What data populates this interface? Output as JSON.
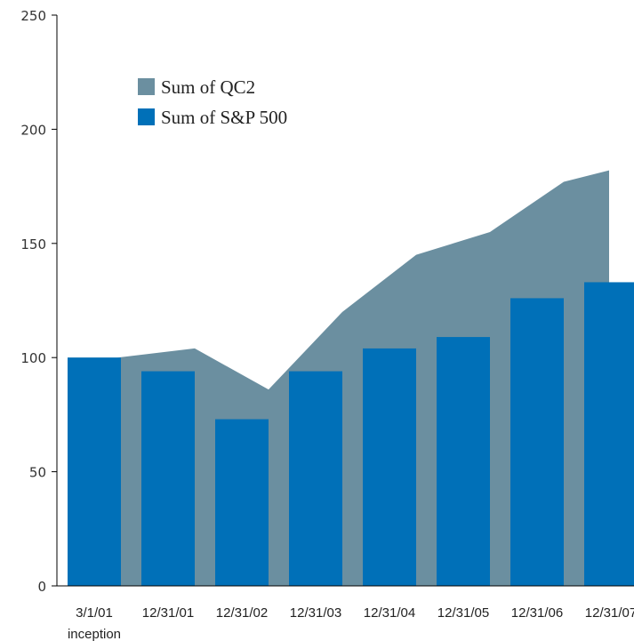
{
  "chart_data": {
    "type": "bar",
    "categories": [
      "3/1/01",
      "12/31/01",
      "12/31/02",
      "12/31/03",
      "12/31/04",
      "12/31/05",
      "12/31/06",
      "12/31/07"
    ],
    "x_sublabels": [
      "inception",
      "",
      "",
      "",
      "",
      "",
      "",
      ""
    ],
    "ylim": [
      0,
      250
    ],
    "yticks": [
      0,
      50,
      100,
      150,
      200,
      250
    ],
    "series": [
      {
        "name": "Sum of QC2",
        "type": "area",
        "color": "#6b8fa0",
        "values": [
          100,
          104,
          86,
          120,
          145,
          155,
          177,
          182
        ]
      },
      {
        "name": "Sum of S&P 500",
        "type": "bar",
        "color": "#0070b8",
        "values": [
          100,
          94,
          73,
          94,
          104,
          109,
          126,
          133
        ]
      }
    ],
    "legend": {
      "placement": "top-left"
    },
    "grid": false
  }
}
